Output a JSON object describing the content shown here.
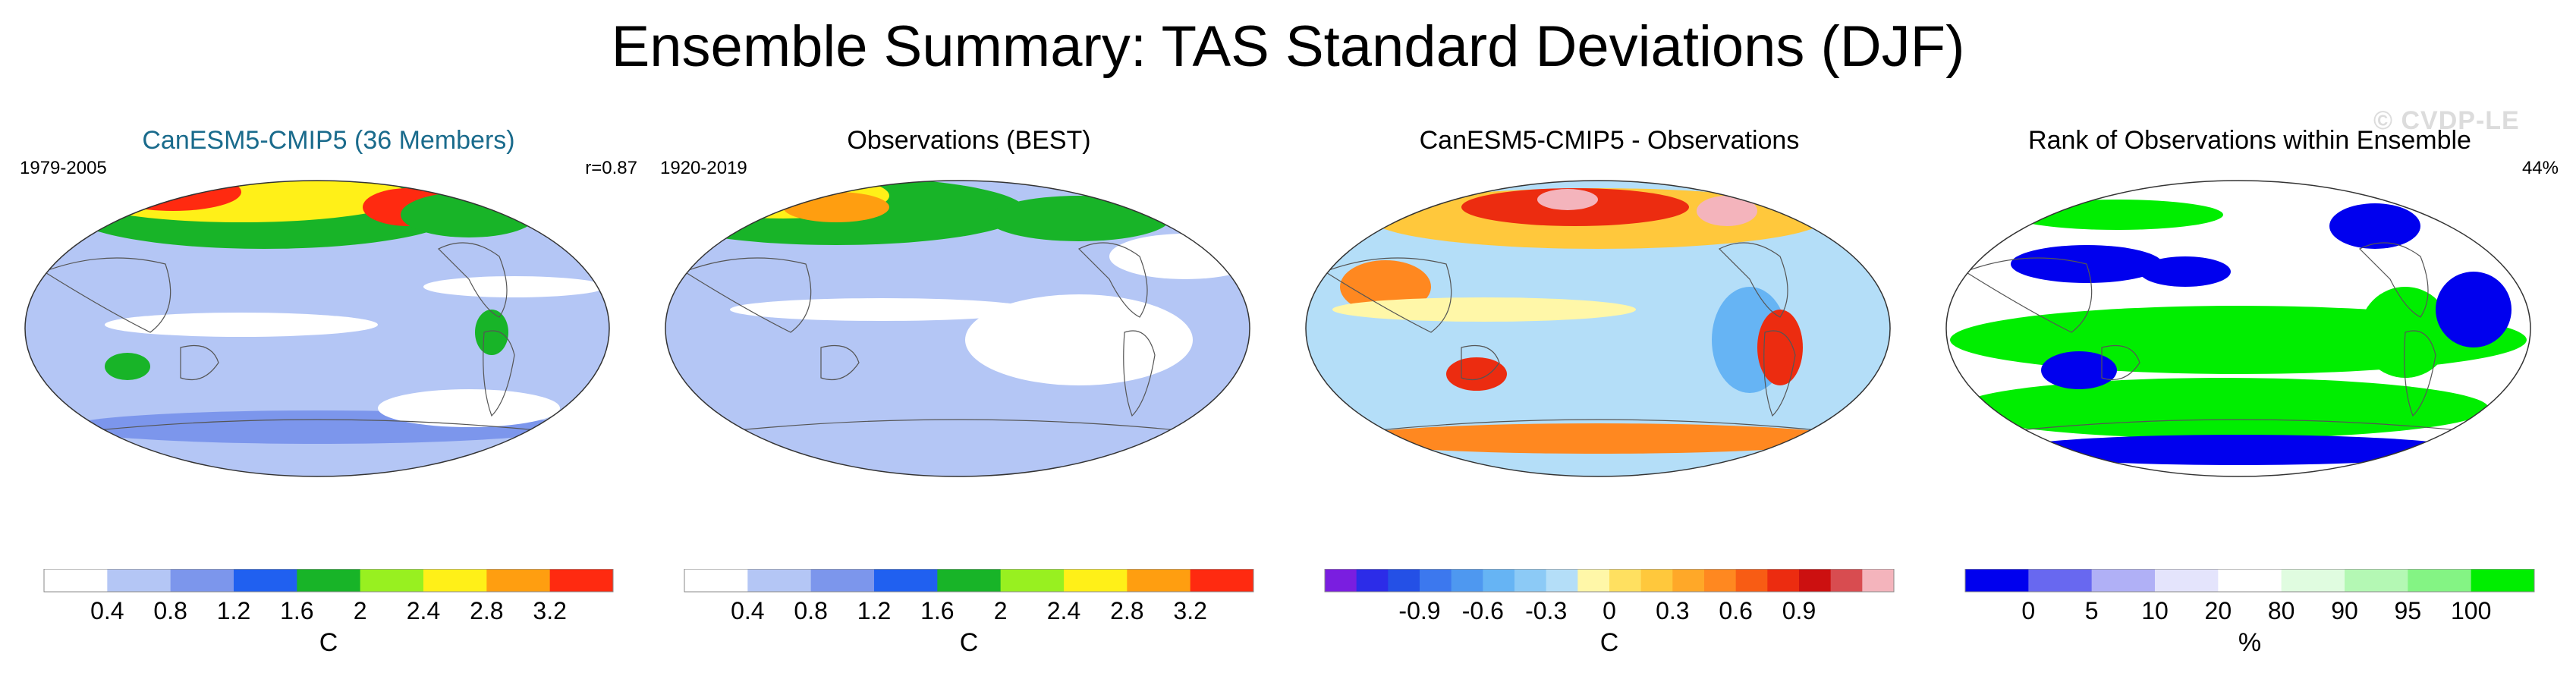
{
  "title": "Ensemble Summary: TAS Standard Deviations (DJF)",
  "watermark": "© CVDP-LE",
  "panels": [
    {
      "title": "CanESM5-CMIP5 (36 Members)",
      "title_color": "#1a6b8c",
      "left_label": "1979-2005",
      "right_label": "r=0.87",
      "colorbar": {
        "colors": [
          "#ffffff",
          "#b4c6f5",
          "#7c96ec",
          "#2060f0",
          "#18b428",
          "#98f020",
          "#fff018",
          "#ff9e10",
          "#ff2a10"
        ],
        "tick_labels": [
          "0.4",
          "0.8",
          "1.2",
          "1.6",
          "2",
          "2.4",
          "2.8",
          "3.2"
        ],
        "unit": "C"
      }
    },
    {
      "title": "Observations (BEST)",
      "title_color": "#000000",
      "left_label": "1920-2019",
      "right_label": "",
      "colorbar": {
        "colors": [
          "#ffffff",
          "#b4c6f5",
          "#7c96ec",
          "#2060f0",
          "#18b428",
          "#98f020",
          "#fff018",
          "#ff9e10",
          "#ff2a10"
        ],
        "tick_labels": [
          "0.4",
          "0.8",
          "1.2",
          "1.6",
          "2",
          "2.4",
          "2.8",
          "3.2"
        ],
        "unit": "C"
      }
    },
    {
      "title": "CanESM5-CMIP5 - Observations",
      "title_color": "#000000",
      "left_label": "",
      "right_label": "",
      "colorbar": {
        "colors": [
          "#7a1ee0",
          "#2c2ce8",
          "#2450e6",
          "#3c78ee",
          "#4e98f0",
          "#66b4f4",
          "#8ccaf6",
          "#b4def8",
          "#fff7a8",
          "#ffe060",
          "#ffc83c",
          "#ffa828",
          "#ff8820",
          "#f85c14",
          "#ec2c10",
          "#cc1010",
          "#d84c50",
          "#f4b4bc"
        ],
        "tick_labels": [
          "-0.9",
          "-0.6",
          "-0.3",
          "0",
          "0.3",
          "0.6",
          "0.9"
        ],
        "unit": "C"
      }
    },
    {
      "title": "Rank of Observations within Ensemble",
      "title_color": "#000000",
      "left_label": "",
      "right_label": "44%",
      "colorbar": {
        "colors": [
          "#0000ee",
          "#6868f0",
          "#b0b0f6",
          "#e4e4fc",
          "#ffffff",
          "#e0fce0",
          "#b4f8b4",
          "#84f484",
          "#00ee00"
        ],
        "tick_labels": [
          "0",
          "5",
          "10",
          "20",
          "80",
          "90",
          "95",
          "100"
        ],
        "unit": "%"
      }
    }
  ]
}
